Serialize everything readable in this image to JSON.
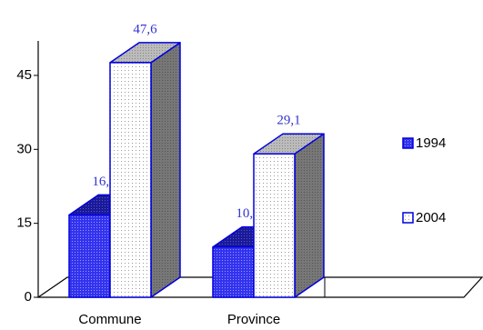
{
  "chart_data": {
    "type": "bar3d",
    "categories": [
      "Commune",
      "Province"
    ],
    "series": [
      {
        "name": "1994",
        "color": "#3333ee",
        "values": [
          16.7,
          10.2
        ],
        "value_labels": [
          "16,7",
          "10,2"
        ]
      },
      {
        "name": "2004",
        "color": "#ffffff",
        "values": [
          47.6,
          29.1
        ],
        "value_labels": [
          "47,6",
          "29,1"
        ]
      }
    ],
    "ylim": [
      0,
      52
    ],
    "yticks": [
      0,
      15,
      30,
      45
    ],
    "legend": "right"
  }
}
